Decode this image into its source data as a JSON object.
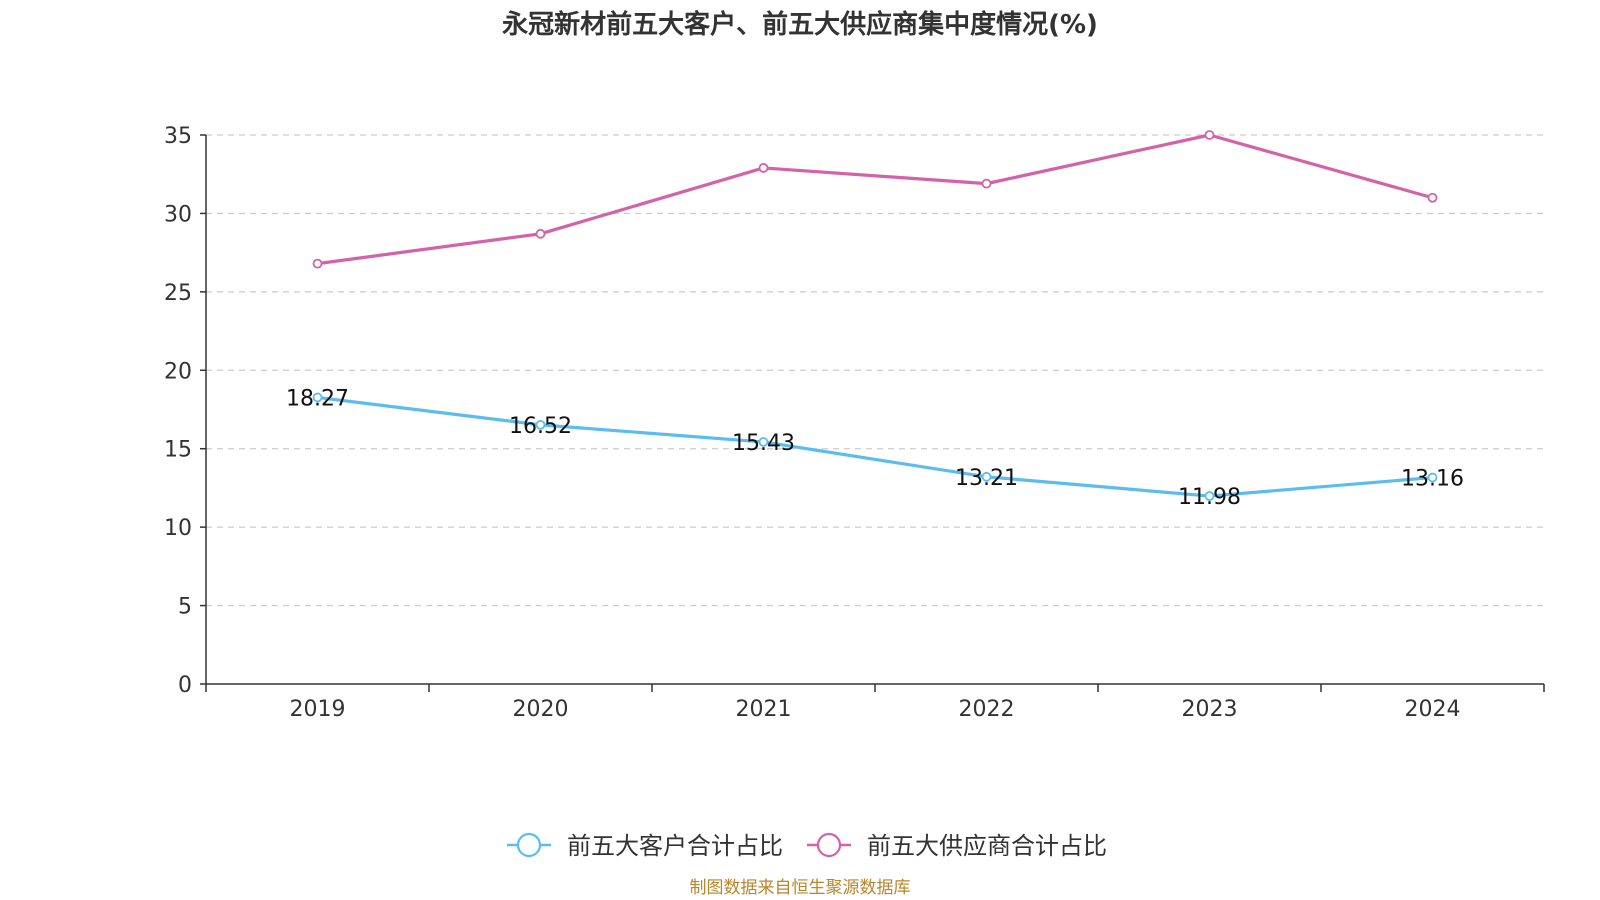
{
  "chart_data": {
    "type": "line",
    "title": "永冠新材前五大客户、前五大供应商集中度情况(%)",
    "categories": [
      "2019",
      "2020",
      "2021",
      "2022",
      "2023",
      "2024"
    ],
    "xlabel": "",
    "ylabel": "",
    "ylim": [
      0,
      35
    ],
    "yticks": [
      0,
      5,
      10,
      15,
      20,
      25,
      30,
      35
    ],
    "grid": true,
    "legend_position": "bottom-center",
    "series": [
      {
        "name": "前五大客户合计占比",
        "color": "#5bbcf0",
        "values": [
          18.27,
          16.52,
          15.43,
          13.21,
          11.98,
          13.16
        ],
        "value_labels": [
          "18.27",
          "16.52",
          "15.43",
          "13.21",
          "11.98",
          "13.16"
        ],
        "show_labels": true
      },
      {
        "name": "前五大供应商合计占比",
        "color": "#d462a8",
        "values": [
          26.8,
          28.7,
          32.9,
          31.9,
          35.0,
          31.0
        ],
        "show_labels": false
      }
    ]
  },
  "source": "制图数据来自恒生聚源数据库"
}
